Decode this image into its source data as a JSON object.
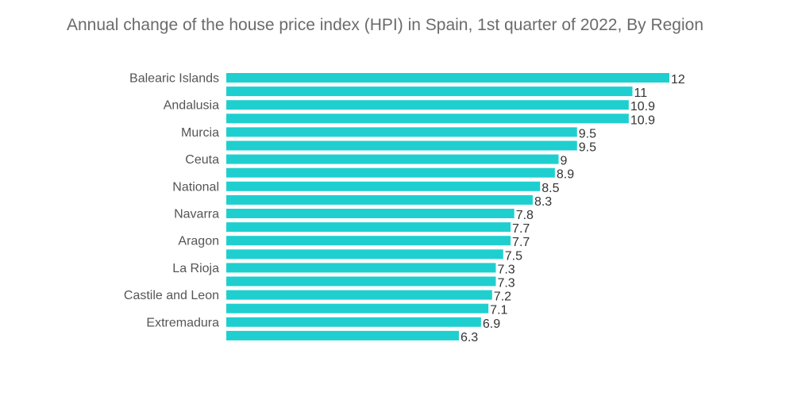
{
  "chart_data": {
    "type": "bar",
    "orientation": "horizontal",
    "title": "Annual change of the house price index (HPI) in Spain, 1st quarter of 2022, By Region",
    "xlabel": "",
    "ylabel": "",
    "categories": [
      "Balearic Islands",
      "",
      "Andalusia",
      "",
      "Murcia",
      "",
      "Ceuta",
      "",
      "National",
      "",
      "Navarra",
      "",
      "Aragon",
      "",
      "La Rioja",
      "",
      "Castile and Leon",
      "",
      "Extremadura",
      ""
    ],
    "values": [
      12,
      11,
      10.9,
      10.9,
      9.5,
      9.5,
      9,
      8.9,
      8.5,
      8.3,
      7.8,
      7.7,
      7.7,
      7.5,
      7.3,
      7.3,
      7.2,
      7.1,
      6.9,
      6.3
    ],
    "xlim": [
      0,
      12
    ],
    "bar_color": "#1fcfcf",
    "grid": false,
    "legend": "none"
  }
}
